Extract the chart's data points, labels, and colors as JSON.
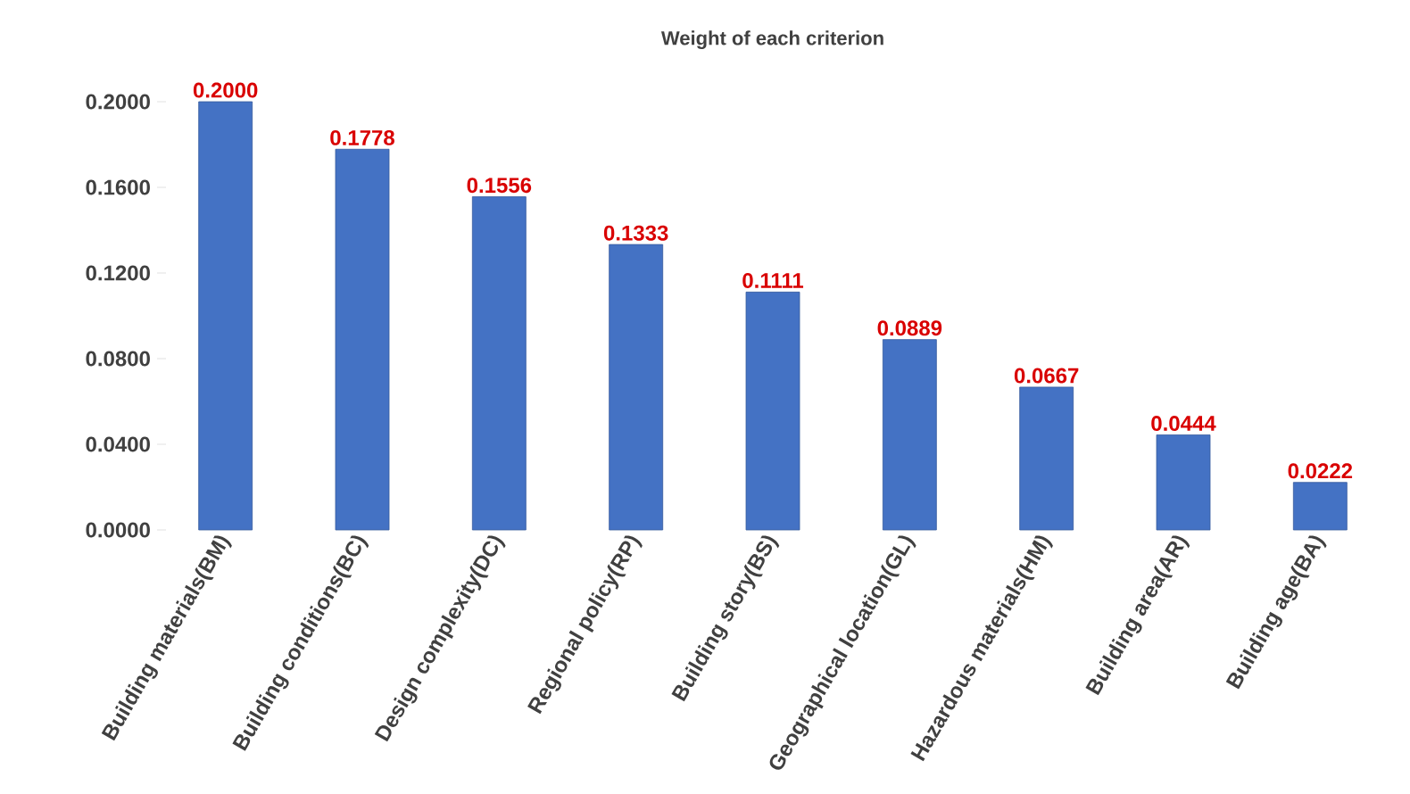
{
  "chart_data": {
    "type": "bar",
    "title": "Weight of each criterion",
    "categories": [
      "Building materials(BM)",
      "Building conditions(BC)",
      "Design complexity(DC)",
      "Regional policy(RP)",
      "Building story(BS)",
      "Geographical location(GL)",
      "Hazardous materials(HM)",
      "Building area(AR)",
      "Building age(BA)"
    ],
    "values": [
      0.2,
      0.1778,
      0.1556,
      0.1333,
      0.1111,
      0.0889,
      0.0667,
      0.0444,
      0.0222
    ],
    "value_labels": [
      "0.2000",
      "0.1778",
      "0.1556",
      "0.1333",
      "0.1111",
      "0.0889",
      "0.0667",
      "0.0444",
      "0.0222"
    ],
    "color": "#4472c4",
    "ylim": [
      0,
      0.2
    ],
    "yticks": [
      {
        "value": 0,
        "label": "0.0000"
      },
      {
        "value": 0.04,
        "label": "0.0400"
      },
      {
        "value": 0.08,
        "label": "0.0800"
      },
      {
        "value": 0.12,
        "label": "0.1200"
      },
      {
        "value": 0.16,
        "label": "0.1600"
      },
      {
        "value": 0.2,
        "label": "0.2000"
      }
    ],
    "grid": false
  }
}
